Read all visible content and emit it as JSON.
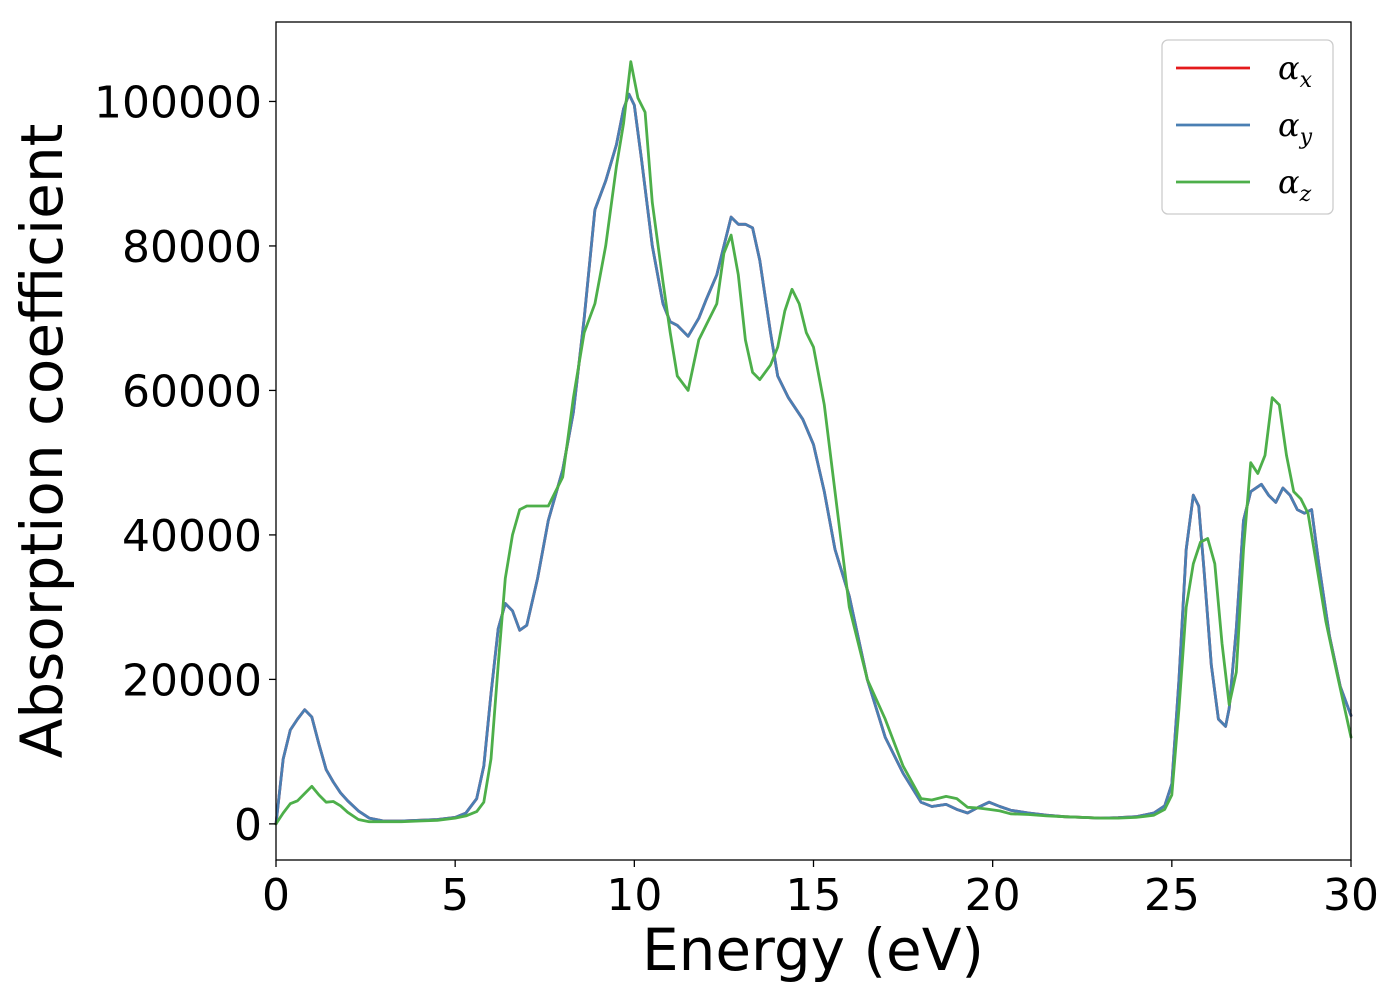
{
  "chart_data": {
    "type": "line",
    "title": "",
    "xlabel": "Energy (eV)",
    "ylabel": "Absorption coefficient",
    "xlim": [
      0,
      30
    ],
    "ylim": [
      -5000,
      111000
    ],
    "xticks": [
      0,
      5,
      10,
      15,
      20,
      25,
      30
    ],
    "xtick_labels": [
      "0",
      "5",
      "10",
      "15",
      "20",
      "25",
      "30"
    ],
    "yticks": [
      0,
      20000,
      40000,
      60000,
      80000,
      100000
    ],
    "ytick_labels": [
      "0",
      "20000",
      "40000",
      "60000",
      "80000",
      "100000"
    ],
    "grid": false,
    "legend_position": "top-right",
    "series": [
      {
        "name": "αx",
        "legend_label": "α",
        "legend_sub": "x",
        "color": "#e41a1c",
        "x": [
          0,
          0.2,
          0.4,
          0.6,
          0.8,
          1.0,
          1.2,
          1.4,
          1.6,
          1.8,
          2.0,
          2.3,
          2.6,
          3.0,
          3.5,
          4.0,
          4.5,
          5.0,
          5.3,
          5.6,
          5.8,
          6.0,
          6.2,
          6.4,
          6.6,
          6.8,
          7.0,
          7.3,
          7.6,
          8.0,
          8.3,
          8.6,
          8.9,
          9.2,
          9.5,
          9.7,
          9.85,
          10.0,
          10.2,
          10.5,
          10.8,
          11.0,
          11.2,
          11.5,
          11.8,
          12.0,
          12.3,
          12.5,
          12.7,
          12.9,
          13.1,
          13.3,
          13.5,
          13.8,
          14.0,
          14.3,
          14.7,
          15.0,
          15.3,
          15.6,
          16.0,
          16.5,
          17.0,
          17.5,
          18.0,
          18.3,
          18.7,
          19.0,
          19.3,
          19.6,
          19.9,
          20.2,
          20.5,
          21.0,
          21.5,
          22.0,
          22.5,
          23.0,
          23.5,
          24.0,
          24.5,
          24.8,
          25.0,
          25.2,
          25.4,
          25.6,
          25.75,
          25.9,
          26.1,
          26.3,
          26.5,
          26.6,
          26.8,
          27.0,
          27.2,
          27.5,
          27.7,
          27.9,
          28.1,
          28.3,
          28.5,
          28.7,
          28.9,
          29.1,
          29.4,
          29.7,
          30.0
        ],
        "y": [
          0,
          9000,
          13000,
          14500,
          15800,
          14800,
          11000,
          7500,
          5800,
          4300,
          3200,
          1800,
          800,
          400,
          400,
          500,
          600,
          900,
          1500,
          3500,
          8000,
          18000,
          27000,
          30500,
          29500,
          26800,
          27500,
          34000,
          42000,
          49000,
          57000,
          70000,
          85000,
          89000,
          94000,
          99000,
          101000,
          99500,
          92000,
          80000,
          72000,
          69500,
          69000,
          67500,
          70000,
          72500,
          76000,
          80000,
          84000,
          83000,
          83000,
          82500,
          78000,
          68000,
          62000,
          59000,
          56000,
          52500,
          46000,
          38000,
          31500,
          20000,
          12000,
          7000,
          3000,
          2400,
          2700,
          2000,
          1500,
          2300,
          3000,
          2400,
          1900,
          1500,
          1200,
          1000,
          900,
          800,
          850,
          1000,
          1500,
          2500,
          5500,
          20000,
          38000,
          45500,
          44000,
          35000,
          22000,
          14500,
          13500,
          16000,
          27000,
          42000,
          46000,
          47000,
          45500,
          44500,
          46500,
          45500,
          43500,
          43000,
          43500,
          36000,
          26000,
          19000,
          15000
        ]
      },
      {
        "name": "αy",
        "legend_label": "α",
        "legend_sub": "y",
        "color": "#4a7fb3",
        "x": [
          0,
          0.2,
          0.4,
          0.6,
          0.8,
          1.0,
          1.2,
          1.4,
          1.6,
          1.8,
          2.0,
          2.3,
          2.6,
          3.0,
          3.5,
          4.0,
          4.5,
          5.0,
          5.3,
          5.6,
          5.8,
          6.0,
          6.2,
          6.4,
          6.6,
          6.8,
          7.0,
          7.3,
          7.6,
          8.0,
          8.3,
          8.6,
          8.9,
          9.2,
          9.5,
          9.7,
          9.85,
          10.0,
          10.2,
          10.5,
          10.8,
          11.0,
          11.2,
          11.5,
          11.8,
          12.0,
          12.3,
          12.5,
          12.7,
          12.9,
          13.1,
          13.3,
          13.5,
          13.8,
          14.0,
          14.3,
          14.7,
          15.0,
          15.3,
          15.6,
          16.0,
          16.5,
          17.0,
          17.5,
          18.0,
          18.3,
          18.7,
          19.0,
          19.3,
          19.6,
          19.9,
          20.2,
          20.5,
          21.0,
          21.5,
          22.0,
          22.5,
          23.0,
          23.5,
          24.0,
          24.5,
          24.8,
          25.0,
          25.2,
          25.4,
          25.6,
          25.75,
          25.9,
          26.1,
          26.3,
          26.5,
          26.6,
          26.8,
          27.0,
          27.2,
          27.5,
          27.7,
          27.9,
          28.1,
          28.3,
          28.5,
          28.7,
          28.9,
          29.1,
          29.4,
          29.7,
          30.0
        ],
        "y": [
          0,
          9000,
          13000,
          14500,
          15800,
          14800,
          11000,
          7500,
          5800,
          4300,
          3200,
          1800,
          800,
          400,
          400,
          500,
          600,
          900,
          1500,
          3500,
          8000,
          18000,
          27000,
          30500,
          29500,
          26800,
          27500,
          34000,
          42000,
          49000,
          57000,
          70000,
          85000,
          89000,
          94000,
          99000,
          101000,
          99500,
          92000,
          80000,
          72000,
          69500,
          69000,
          67500,
          70000,
          72500,
          76000,
          80000,
          84000,
          83000,
          83000,
          82500,
          78000,
          68000,
          62000,
          59000,
          56000,
          52500,
          46000,
          38000,
          31500,
          20000,
          12000,
          7000,
          3000,
          2400,
          2700,
          2000,
          1500,
          2300,
          3000,
          2400,
          1900,
          1500,
          1200,
          1000,
          900,
          800,
          850,
          1000,
          1500,
          2500,
          5500,
          20000,
          38000,
          45500,
          44000,
          35000,
          22000,
          14500,
          13500,
          16000,
          27000,
          42000,
          46000,
          47000,
          45500,
          44500,
          46500,
          45500,
          43500,
          43000,
          43500,
          36000,
          26000,
          19000,
          15000
        ]
      },
      {
        "name": "αz",
        "legend_label": "α",
        "legend_sub": "z",
        "color": "#4daf4a",
        "x": [
          0,
          0.2,
          0.4,
          0.6,
          0.8,
          1.0,
          1.2,
          1.4,
          1.6,
          1.8,
          2.0,
          2.3,
          2.6,
          3.0,
          3.5,
          4.0,
          4.5,
          5.0,
          5.3,
          5.6,
          5.8,
          6.0,
          6.2,
          6.4,
          6.6,
          6.8,
          7.0,
          7.3,
          7.6,
          8.0,
          8.3,
          8.6,
          8.9,
          9.2,
          9.5,
          9.7,
          9.9,
          10.1,
          10.3,
          10.5,
          10.8,
          11.0,
          11.2,
          11.5,
          11.8,
          12.0,
          12.3,
          12.5,
          12.7,
          12.9,
          13.1,
          13.3,
          13.5,
          13.8,
          14.0,
          14.2,
          14.4,
          14.6,
          14.8,
          15.0,
          15.3,
          15.6,
          16.0,
          16.5,
          17.0,
          17.5,
          18.0,
          18.3,
          18.7,
          19.0,
          19.3,
          19.6,
          19.9,
          20.2,
          20.5,
          21.0,
          21.5,
          22.0,
          22.5,
          23.0,
          23.5,
          24.0,
          24.5,
          24.8,
          25.0,
          25.2,
          25.4,
          25.6,
          25.8,
          26.0,
          26.2,
          26.4,
          26.6,
          26.8,
          27.0,
          27.2,
          27.4,
          27.6,
          27.8,
          28.0,
          28.2,
          28.4,
          28.6,
          28.8,
          29.0,
          29.3,
          29.6,
          30.0
        ],
        "y": [
          0,
          1500,
          2800,
          3200,
          4200,
          5200,
          4000,
          3000,
          3100,
          2500,
          1600,
          600,
          300,
          300,
          300,
          400,
          500,
          800,
          1100,
          1700,
          3000,
          9000,
          22000,
          34000,
          40000,
          43500,
          44000,
          44000,
          44000,
          48000,
          59000,
          68000,
          72000,
          80000,
          91000,
          97000,
          105500,
          100500,
          98500,
          86000,
          75000,
          68000,
          62000,
          60000,
          67000,
          69000,
          72000,
          79000,
          81500,
          76000,
          67000,
          62500,
          61500,
          63500,
          66000,
          71000,
          74000,
          72000,
          68000,
          66000,
          58000,
          46000,
          30000,
          20000,
          14500,
          8000,
          3500,
          3300,
          3800,
          3500,
          2300,
          2200,
          2000,
          1800,
          1400,
          1300,
          1100,
          1000,
          900,
          800,
          800,
          900,
          1200,
          2000,
          4000,
          16000,
          30000,
          36000,
          39000,
          39500,
          36000,
          25000,
          16500,
          21000,
          38000,
          50000,
          48500,
          51000,
          59000,
          58000,
          51000,
          46000,
          45000,
          43000,
          37000,
          28000,
          21000,
          12000
        ]
      }
    ]
  }
}
